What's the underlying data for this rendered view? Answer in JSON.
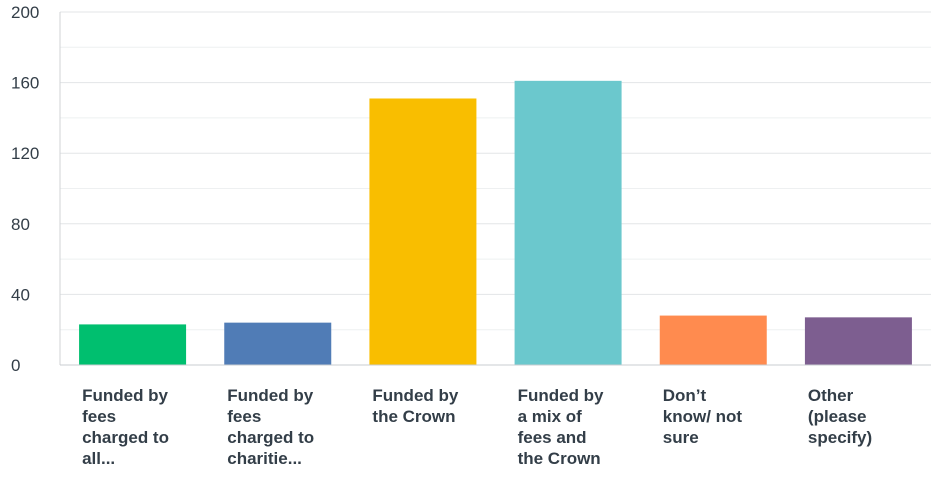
{
  "chart_data": {
    "type": "bar",
    "categories": [
      "Funded by fees charged to all...",
      "Funded by fees charged to charitie...",
      "Funded by the Crown",
      "Funded by a mix of fees and the Crown",
      "Don’t know/ not sure",
      "Other (please specify)"
    ],
    "category_lines": [
      [
        "Funded by",
        "fees",
        "charged to",
        "all..."
      ],
      [
        "Funded by",
        "fees",
        "charged to",
        "charitie..."
      ],
      [
        "Funded by",
        "the Crown"
      ],
      [
        "Funded by",
        "a mix of",
        "fees and",
        "the Crown"
      ],
      [
        "Don’t",
        "know/ not",
        "sure"
      ],
      [
        "Other",
        "(please",
        "specify)"
      ]
    ],
    "values": [
      23,
      24,
      151,
      161,
      28,
      27
    ],
    "colors": [
      "#00bf6f",
      "#507cb6",
      "#f9be00",
      "#6bc8cd",
      "#ff8b4f",
      "#7d5e90"
    ],
    "ylim": [
      0,
      200
    ],
    "yticks": [
      0,
      40,
      80,
      120,
      160,
      200
    ],
    "minor_grid_step": 20,
    "grid": true,
    "title": "",
    "xlabel": "",
    "ylabel": ""
  }
}
